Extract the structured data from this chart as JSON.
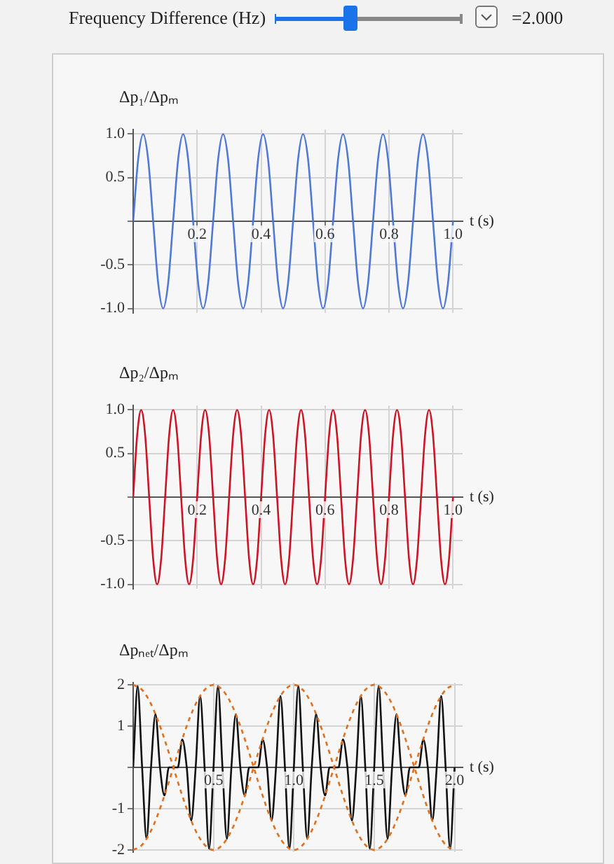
{
  "chart_data": [
    {
      "type": "line",
      "annotations": [
        "Frequency Difference (Hz)",
        "=2.000"
      ],
      "ylabel": "Δp₁/Δpₘ",
      "xlabel": "t (s)",
      "xlim": [
        0,
        1.03
      ],
      "ylim": [
        -1.05,
        1.05
      ],
      "grid": true,
      "xticks": [
        {
          "value": 0,
          "label": null
        },
        0.2,
        0.4,
        0.6,
        0.8,
        {
          "value": 1,
          "label": "1.0"
        }
      ],
      "yticks": [
        {
          "value": -1,
          "label": "-1.0"
        },
        -0.5,
        {
          "value": 0,
          "label": null
        },
        0.5,
        {
          "value": 1,
          "label": "1.0"
        }
      ],
      "x": [
        0,
        0.015625,
        0.03125,
        0.046875,
        0.0625,
        0.078125,
        0.09375,
        0.109375,
        0.125,
        0.140625,
        0.15625,
        0.171875,
        0.1875,
        0.203125,
        0.21875,
        0.234375,
        0.25,
        0.265625,
        0.28125,
        0.296875,
        0.3125,
        0.328125,
        0.34375,
        0.359375,
        0.375,
        0.390625,
        0.40625,
        0.421875,
        0.4375,
        0.453125,
        0.46875,
        0.484375,
        0.5,
        0.515625,
        0.53125,
        0.546875,
        0.5625,
        0.578125,
        0.59375,
        0.609375,
        0.625,
        0.640625,
        0.65625,
        0.671875,
        0.6875,
        0.703125,
        0.71875,
        0.734375,
        0.75,
        0.765625,
        0.78125,
        0.796875,
        0.8125,
        0.828125,
        0.84375,
        0.859375,
        0.875,
        0.890625,
        0.90625,
        0.921875,
        0.9375,
        0.953125,
        0.96875,
        0.984375,
        1
      ],
      "series": [
        {
          "color": "#5079d6",
          "values": [
            0,
            0.71,
            1,
            0.71,
            0,
            -0.71,
            -1,
            -0.71,
            0,
            0.71,
            1,
            0.71,
            0,
            -0.71,
            -1,
            -0.71,
            0,
            0.71,
            1,
            0.71,
            0,
            -0.71,
            -1,
            -0.71,
            0,
            0.71,
            1,
            0.71,
            0,
            -0.71,
            -1,
            -0.71,
            0,
            0.71,
            1,
            0.71,
            0,
            -0.71,
            -1,
            -0.71,
            0,
            0.71,
            1,
            0.71,
            0,
            -0.71,
            -1,
            -0.71,
            0,
            0.71,
            1,
            0.71,
            0,
            -0.71,
            -1,
            -0.71,
            0,
            0.71,
            1,
            0.71,
            0,
            -0.71,
            -1,
            -0.71,
            0
          ]
        }
      ]
    },
    {
      "type": "line",
      "ylabel": "Δp₂/Δpₘ",
      "xlabel": "t (s)",
      "xlim": [
        0,
        1.03
      ],
      "ylim": [
        -1.05,
        1.05
      ],
      "grid": true,
      "xticks": [
        {
          "value": 0,
          "label": null
        },
        0.2,
        0.4,
        0.6,
        0.8,
        {
          "value": 1,
          "label": "1.0"
        }
      ],
      "yticks": [
        {
          "value": -1,
          "label": "-1.0"
        },
        -0.5,
        {
          "value": 0,
          "label": null
        },
        0.5,
        {
          "value": 1,
          "label": "1.0"
        }
      ],
      "x": [
        0,
        0.0125,
        0.025,
        0.0375,
        0.05,
        0.0625,
        0.075,
        0.0875,
        0.1,
        0.1125,
        0.125,
        0.1375,
        0.15,
        0.1625,
        0.175,
        0.1875,
        0.2,
        0.2125,
        0.225,
        0.2375,
        0.25,
        0.2625,
        0.275,
        0.2875,
        0.3,
        0.3125,
        0.325,
        0.3375,
        0.35,
        0.3625,
        0.375,
        0.3875,
        0.4,
        0.4125,
        0.425,
        0.4375,
        0.45,
        0.4625,
        0.475,
        0.4875,
        0.5,
        0.5125,
        0.525,
        0.5375,
        0.55,
        0.5625,
        0.575,
        0.5875,
        0.6,
        0.6125,
        0.625,
        0.6375,
        0.65,
        0.6625,
        0.675,
        0.6875,
        0.7,
        0.7125,
        0.725,
        0.7375,
        0.75,
        0.7625,
        0.775,
        0.7875,
        0.8,
        0.8125,
        0.825,
        0.8375,
        0.85,
        0.8625,
        0.875,
        0.8875,
        0.9,
        0.9125,
        0.925,
        0.9375,
        0.95,
        0.9625,
        0.975,
        0.9875,
        1
      ],
      "series": [
        {
          "color": "#cc1424",
          "values": [
            0,
            0.71,
            1,
            0.71,
            0,
            -0.71,
            -1,
            -0.71,
            0,
            0.71,
            1,
            0.71,
            0,
            -0.71,
            -1,
            -0.71,
            0,
            0.71,
            1,
            0.71,
            0,
            -0.71,
            -1,
            -0.71,
            0,
            0.71,
            1,
            0.71,
            0,
            -0.71,
            -1,
            -0.71,
            0,
            0.71,
            1,
            0.71,
            0,
            -0.71,
            -1,
            -0.71,
            0,
            0.71,
            1,
            0.71,
            0,
            -0.71,
            -1,
            -0.71,
            0,
            0.71,
            1,
            0.71,
            0,
            -0.71,
            -1,
            -0.71,
            0,
            0.71,
            1,
            0.71,
            0,
            -0.71,
            -1,
            -0.71,
            0,
            0.71,
            1,
            0.71,
            0,
            -0.71,
            -1,
            -0.71,
            0,
            0.71,
            1,
            0.71,
            0,
            -0.71,
            -1,
            -0.71,
            0
          ]
        }
      ]
    },
    {
      "type": "line",
      "ylabel": "Δpₙₑₜ/Δpₘ",
      "xlabel": "t (s)",
      "xlim": [
        0,
        2.05
      ],
      "ylim": [
        -2.05,
        2.05
      ],
      "grid": true,
      "xticks": [
        {
          "value": 0,
          "label": null
        },
        0.5,
        {
          "value": 1,
          "label": "1.0"
        },
        1.5,
        {
          "value": 2,
          "label": "2.0"
        }
      ],
      "yticks": [
        -2,
        -1,
        {
          "value": 0,
          "label": null
        },
        1,
        2
      ],
      "x": [
        0,
        0.0278,
        0.0556,
        0.0833,
        0.1111,
        0.1389,
        0.1667,
        0.1944,
        0.2222,
        0.25,
        0.2778,
        0.3056,
        0.3333,
        0.3611,
        0.3889,
        0.4167,
        0.4444,
        0.4722,
        0.5,
        0.5278,
        0.5556,
        0.5833,
        0.6111,
        0.6389,
        0.6667,
        0.6944,
        0.7222,
        0.75,
        0.7778,
        0.8056,
        0.8333,
        0.8611,
        0.8889,
        0.9167,
        0.9444,
        0.9722,
        1,
        1.0278,
        1.0556,
        1.0833,
        1.1111,
        1.1389,
        1.1667,
        1.1944,
        1.2222,
        1.25,
        1.2778,
        1.3056,
        1.3333,
        1.3611,
        1.3889,
        1.4167,
        1.4444,
        1.4722,
        1.5,
        1.5278,
        1.5556,
        1.5833,
        1.6111,
        1.6389,
        1.6667,
        1.6944,
        1.7222,
        1.75,
        1.7778,
        1.8056,
        1.8333,
        1.8611,
        1.8889,
        1.9167,
        1.9444,
        1.9722,
        2
      ],
      "series": [
        {
          "color": "#e0701e",
          "line_style": "dashed",
          "x": [
            0,
            0.05,
            0.1,
            0.15,
            0.2,
            0.25,
            0.3,
            0.35,
            0.4,
            0.45,
            0.5,
            0.55,
            0.6,
            0.65,
            0.7,
            0.75,
            0.8,
            0.85,
            0.9,
            0.95,
            1,
            1.05,
            1.1,
            1.15,
            1.2,
            1.25,
            1.3,
            1.35,
            1.4,
            1.45,
            1.5,
            1.55,
            1.6,
            1.65,
            1.7,
            1.75,
            1.8,
            1.85,
            1.9,
            1.95,
            2
          ],
          "values": [
            2,
            1.9,
            1.62,
            1.18,
            0.62,
            0,
            -0.62,
            -1.18,
            -1.62,
            -1.9,
            -2,
            -1.9,
            -1.62,
            -1.18,
            -0.62,
            0,
            0.62,
            1.18,
            1.62,
            1.9,
            2,
            1.9,
            1.62,
            1.18,
            0.62,
            0,
            -0.62,
            -1.18,
            -1.62,
            -1.9,
            -2,
            -1.9,
            -1.62,
            -1.18,
            -0.62,
            0,
            0.62,
            1.18,
            1.62,
            1.9,
            2
          ]
        },
        {
          "color": "#e0701e",
          "line_style": "dashed",
          "x": [
            0,
            0.05,
            0.1,
            0.15,
            0.2,
            0.25,
            0.3,
            0.35,
            0.4,
            0.45,
            0.5,
            0.55,
            0.6,
            0.65,
            0.7,
            0.75,
            0.8,
            0.85,
            0.9,
            0.95,
            1,
            1.05,
            1.1,
            1.15,
            1.2,
            1.25,
            1.3,
            1.35,
            1.4,
            1.45,
            1.5,
            1.55,
            1.6,
            1.65,
            1.7,
            1.75,
            1.8,
            1.85,
            1.9,
            1.95,
            2
          ],
          "values": [
            -2,
            -1.9,
            -1.62,
            -1.18,
            -0.62,
            0,
            0.62,
            1.18,
            1.62,
            1.9,
            2,
            1.9,
            1.62,
            1.18,
            0.62,
            0,
            -0.62,
            -1.18,
            -1.62,
            -1.9,
            -2,
            -1.9,
            -1.62,
            -1.18,
            -0.62,
            0,
            0.62,
            1.18,
            1.62,
            1.9,
            2,
            1.9,
            1.62,
            1.18,
            0.62,
            0,
            -0.62,
            -1.18,
            -1.62,
            -1.9,
            -2
          ]
        },
        {
          "color": "#111111",
          "values": [
            0,
            1.97,
            0,
            -1.73,
            0,
            1.29,
            0,
            -0.68,
            0,
            0,
            0,
            0.68,
            0,
            -1.29,
            0,
            1.73,
            0,
            -1.97,
            0,
            1.97,
            0,
            -1.73,
            0,
            1.29,
            0,
            -0.68,
            0,
            0,
            0,
            0.68,
            0,
            -1.29,
            0,
            1.73,
            0,
            -1.97,
            0,
            1.97,
            0,
            -1.73,
            0,
            1.29,
            0,
            -0.68,
            0,
            0,
            0,
            0.68,
            0,
            -1.29,
            0,
            1.73,
            0,
            -1.97,
            0,
            1.97,
            0,
            -1.73,
            0,
            1.29,
            0,
            -0.68,
            0,
            0,
            0,
            0.68,
            0,
            -1.29,
            0,
            1.73,
            0,
            -1.97,
            0
          ]
        }
      ]
    }
  ]
}
